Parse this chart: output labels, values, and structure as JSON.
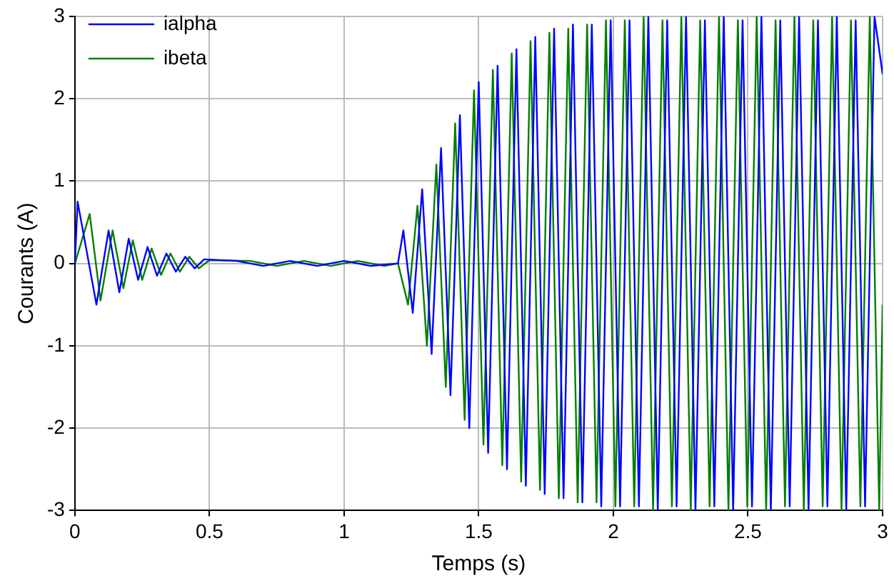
{
  "chart_data": {
    "type": "line",
    "xlabel": "Temps (s)",
    "ylabel": "Courants (A)",
    "xlim": [
      0,
      3
    ],
    "ylim": [
      -3,
      3
    ],
    "xticks": [
      0,
      0.5,
      1,
      1.5,
      2,
      2.5,
      3
    ],
    "yticks": [
      -3,
      -2,
      -1,
      0,
      1,
      2,
      3
    ],
    "grid": true,
    "legend": "top left",
    "marker": "none",
    "line_style": "solid",
    "series": [
      {
        "name": "ialpha",
        "color": "#0000ff",
        "x": [
          0,
          0.01,
          0.08,
          0.125,
          0.165,
          0.2,
          0.235,
          0.27,
          0.305,
          0.34,
          0.375,
          0.41,
          0.445,
          0.48,
          0.6,
          0.7,
          0.8,
          0.9,
          1.0,
          1.1,
          1.2,
          1.22,
          1.255,
          1.29,
          1.325,
          1.36,
          1.395,
          1.43,
          1.465,
          1.5,
          1.535,
          1.57,
          1.605,
          1.64,
          1.675,
          1.71,
          1.745,
          1.78,
          1.815,
          1.85,
          1.885,
          1.92,
          1.955,
          1.99,
          2.025,
          2.06,
          2.095,
          2.13,
          2.165,
          2.2,
          2.235,
          2.27,
          2.305,
          2.34,
          2.375,
          2.41,
          2.445,
          2.48,
          2.515,
          2.55,
          2.585,
          2.62,
          2.655,
          2.69,
          2.725,
          2.76,
          2.795,
          2.83,
          2.865,
          2.9,
          2.935,
          2.97,
          3.0
        ],
        "values": [
          0,
          0.75,
          -0.5,
          0.4,
          -0.35,
          0.3,
          -0.2,
          0.2,
          -0.15,
          0.12,
          -0.1,
          0.08,
          -0.06,
          0.05,
          0.03,
          -0.03,
          0.03,
          -0.03,
          0.03,
          -0.03,
          0,
          0.4,
          -0.6,
          0.9,
          -1.1,
          1.4,
          -1.6,
          1.8,
          -2.0,
          2.2,
          -2.3,
          2.4,
          -2.5,
          2.6,
          -2.7,
          2.75,
          -2.8,
          2.85,
          -2.85,
          2.9,
          -2.9,
          2.9,
          -2.95,
          2.95,
          -2.95,
          2.95,
          -2.95,
          3,
          -3,
          2.95,
          -2.95,
          3,
          -3,
          2.95,
          -2.95,
          3,
          -3,
          2.95,
          -2.95,
          3,
          -3,
          2.95,
          -2.95,
          3,
          -3,
          2.95,
          -2.95,
          3,
          -3,
          2.95,
          -2.95,
          3,
          2.3
        ]
      },
      {
        "name": "ibeta",
        "color": "#008000",
        "x": [
          0,
          0.055,
          0.095,
          0.14,
          0.18,
          0.215,
          0.25,
          0.285,
          0.32,
          0.355,
          0.39,
          0.425,
          0.46,
          0.5,
          0.65,
          0.75,
          0.85,
          0.95,
          1.05,
          1.15,
          1.2,
          1.2375,
          1.2725,
          1.3075,
          1.3425,
          1.3775,
          1.4125,
          1.4475,
          1.4825,
          1.5175,
          1.5525,
          1.5875,
          1.6225,
          1.6575,
          1.6925,
          1.7275,
          1.7625,
          1.7975,
          1.8325,
          1.8675,
          1.9025,
          1.9375,
          1.9725,
          2.0075,
          2.0425,
          2.0775,
          2.1125,
          2.1475,
          2.1825,
          2.2175,
          2.2525,
          2.2875,
          2.3225,
          2.3575,
          2.3925,
          2.4275,
          2.4625,
          2.4975,
          2.5325,
          2.5675,
          2.6025,
          2.6375,
          2.6725,
          2.7075,
          2.7425,
          2.7775,
          2.8125,
          2.8475,
          2.8825,
          2.9175,
          2.9525,
          2.9875,
          3.0
        ],
        "values": [
          0,
          0.6,
          -0.45,
          0.4,
          -0.3,
          0.28,
          -0.2,
          0.18,
          -0.14,
          0.12,
          -0.1,
          0.08,
          -0.06,
          0.04,
          0.03,
          -0.03,
          0.03,
          -0.03,
          0.03,
          -0.03,
          0,
          -0.5,
          0.7,
          -1.0,
          1.2,
          -1.5,
          1.7,
          -1.9,
          2.1,
          -2.2,
          2.35,
          -2.45,
          2.55,
          -2.65,
          2.7,
          -2.75,
          2.8,
          -2.85,
          2.85,
          -2.9,
          2.9,
          -2.9,
          2.95,
          -2.95,
          2.95,
          -2.95,
          3,
          -3,
          2.95,
          -2.95,
          3,
          -3,
          2.95,
          -2.95,
          3,
          -3,
          2.95,
          -2.95,
          3,
          -3,
          2.95,
          -2.95,
          3,
          -3,
          2.95,
          -2.95,
          3,
          -3,
          2.95,
          -2.95,
          3,
          -3,
          -0.5
        ]
      }
    ]
  }
}
